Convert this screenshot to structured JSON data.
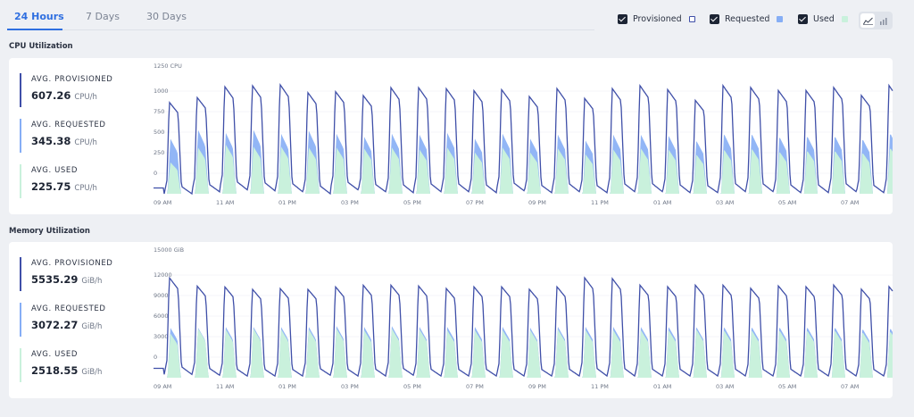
{
  "tabs": [
    "24 Hours",
    "7 Days",
    "30 Days"
  ],
  "legend": {
    "provisioned": "Provisioned",
    "requested": "Requested",
    "used": "Used"
  },
  "toggle": {
    "icons": [
      "line-chart-icon",
      "bar-chart-icon"
    ]
  },
  "colors": {
    "provisioned": "#3f4fa8",
    "requested": "#86aef5",
    "used": "#c9f1dc",
    "accent": "#2f6fe0"
  },
  "cpu": {
    "section_title": "CPU Utilization",
    "axis_title": "1250 CPU",
    "y_ticks": [
      "1000",
      "750",
      "500",
      "250",
      "0"
    ],
    "x_ticks": [
      "09 AM",
      "11 AM",
      "01 PM",
      "03 PM",
      "05 PM",
      "07 PM",
      "09 PM",
      "11 PM",
      "01 AM",
      "03 AM",
      "05 AM",
      "07 AM"
    ],
    "stats": [
      {
        "label": "AVG. PROVISIONED",
        "value": "607.26",
        "unit": "CPU/h"
      },
      {
        "label": "AVG. REQUESTED",
        "value": "345.38",
        "unit": "CPU/h"
      },
      {
        "label": "AVG. USED",
        "value": "225.75",
        "unit": "CPU/h"
      }
    ]
  },
  "memory": {
    "section_title": "Memory Utilization",
    "axis_title": "15000 GiB",
    "y_ticks": [
      "12000",
      "9000",
      "6000",
      "3000",
      "0"
    ],
    "x_ticks": [
      "09 AM",
      "11 AM",
      "01 PM",
      "03 PM",
      "05 PM",
      "07 PM",
      "09 PM",
      "11 PM",
      "01 AM",
      "03 AM",
      "05 AM",
      "07 AM"
    ],
    "stats": [
      {
        "label": "AVG. PROVISIONED",
        "value": "5535.29",
        "unit": "GiB/h"
      },
      {
        "label": "AVG. REQUESTED",
        "value": "3072.27",
        "unit": "GiB/h"
      },
      {
        "label": "AVG. USED",
        "value": "2518.55",
        "unit": "GiB/h"
      }
    ]
  },
  "chart_data": [
    {
      "type": "area",
      "title": "CPU Utilization",
      "ylabel": "CPU",
      "ylim": [
        0,
        1250
      ],
      "x": [
        "09 AM",
        "11 AM",
        "01 PM",
        "03 PM",
        "05 PM",
        "07 PM",
        "09 PM",
        "11 PM",
        "01 AM",
        "03 AM",
        "05 AM",
        "07 AM"
      ],
      "series": [
        {
          "name": "Provisioned",
          "peaks": [
            930,
            980,
            1090,
            1100,
            1110,
            1030,
            1040,
            1000,
            1080,
            1080,
            1070,
            1050,
            1060,
            990,
            1070,
            970,
            1070,
            1100,
            1060,
            950,
            1100,
            1080,
            1050,
            1050,
            1080,
            1000,
            1100
          ],
          "troughs": [
            0,
            20,
            40,
            30,
            20,
            0,
            40,
            20,
            10,
            20,
            20,
            10,
            30,
            10,
            20,
            10,
            20,
            20,
            10,
            10,
            20,
            20,
            10,
            10,
            20,
            10,
            10
          ]
        },
        {
          "name": "Requested",
          "peaks": [
            560,
            650,
            620,
            650,
            610,
            640,
            610,
            580,
            610,
            600,
            620,
            560,
            610,
            560,
            600,
            540,
            600,
            600,
            590,
            540,
            610,
            610,
            580,
            590,
            590,
            560,
            620
          ]
        },
        {
          "name": "Used",
          "peaks": [
            320,
            470,
            500,
            480,
            480,
            470,
            470,
            460,
            470,
            450,
            470,
            420,
            470,
            420,
            460,
            400,
            450,
            460,
            450,
            400,
            450,
            460,
            430,
            440,
            440,
            420,
            470
          ]
        }
      ]
    },
    {
      "type": "area",
      "title": "Memory Utilization",
      "ylabel": "GiB",
      "ylim": [
        0,
        15000
      ],
      "x": [
        "09 AM",
        "11 AM",
        "01 PM",
        "03 PM",
        "05 PM",
        "07 PM",
        "09 PM",
        "11 PM",
        "01 AM",
        "03 AM",
        "05 AM",
        "07 AM"
      ],
      "series": [
        {
          "name": "Provisioned",
          "peaks": [
            12200,
            11200,
            11100,
            10800,
            10900,
            10800,
            11100,
            11300,
            11300,
            11200,
            10900,
            11100,
            11100,
            10800,
            11100,
            12200,
            12100,
            11300,
            11100,
            11300,
            11300,
            10900,
            11200,
            11100,
            11300,
            10800,
            11100
          ],
          "troughs": [
            400,
            300,
            200,
            200,
            200,
            300,
            200,
            200,
            300,
            200,
            200,
            200,
            200,
            200,
            200,
            200,
            200,
            200,
            200,
            200,
            200,
            200,
            200,
            200,
            200,
            200,
            200
          ]
        },
        {
          "name": "Requested",
          "peaks": [
            6100,
            6100,
            6200,
            6200,
            6200,
            6200,
            6300,
            6200,
            6300,
            6200,
            6200,
            6200,
            6200,
            6100,
            6200,
            6200,
            6200,
            6200,
            6200,
            6200,
            6200,
            6200,
            6200,
            6200,
            6200,
            6000,
            6100
          ]
        },
        {
          "name": "Used",
          "peaks": [
            5400,
            6000,
            5900,
            6000,
            5900,
            5900,
            6000,
            5800,
            6000,
            5900,
            5800,
            5800,
            5800,
            5800,
            5900,
            5800,
            5800,
            5800,
            5800,
            5900,
            5800,
            5800,
            5800,
            5800,
            5800,
            5600,
            5700
          ]
        }
      ]
    }
  ]
}
